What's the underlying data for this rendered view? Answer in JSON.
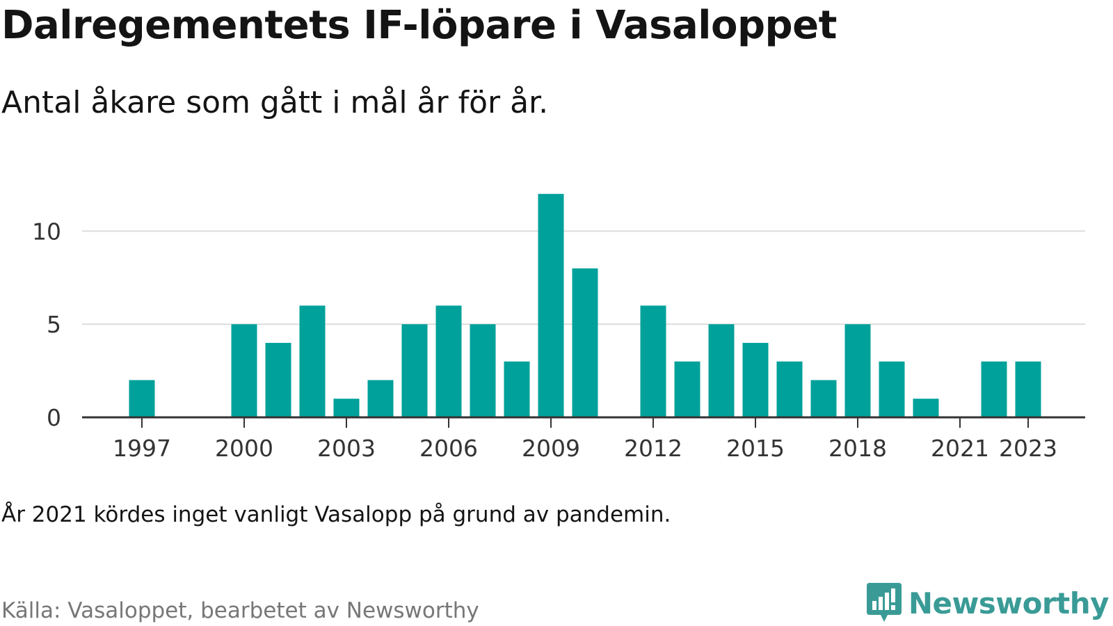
{
  "title": "Dalregementets IF-löpare i Vasaloppet",
  "subtitle": "Antal åkare som gått i mål år för år.",
  "note": "År 2021 kördes inget vanligt Vasalopp på grund av pandemin.",
  "source": "Källa: Vasaloppet, bearbetet av Newsworthy",
  "logo": {
    "text": "Newsworthy",
    "icon": "newsworthy-logo-icon",
    "color": "#3a9b96"
  },
  "chart_data": {
    "type": "bar",
    "x": [
      1997,
      1998,
      1999,
      2000,
      2001,
      2002,
      2003,
      2004,
      2005,
      2006,
      2007,
      2008,
      2009,
      2010,
      2011,
      2012,
      2013,
      2014,
      2015,
      2016,
      2017,
      2018,
      2019,
      2020,
      2021,
      2022,
      2023
    ],
    "values": [
      2,
      0,
      0,
      5,
      4,
      6,
      1,
      2,
      5,
      6,
      5,
      3,
      12,
      8,
      0,
      6,
      3,
      5,
      4,
      3,
      2,
      5,
      3,
      1,
      0,
      3,
      3
    ],
    "x_ticks": [
      "1997",
      "2000",
      "2003",
      "2006",
      "2009",
      "2012",
      "2015",
      "2018",
      "2021",
      "2023"
    ],
    "y_ticks": [
      "0",
      "5",
      "10"
    ],
    "ylim": [
      0,
      13
    ],
    "grid": true,
    "bar_color": "#00a19a",
    "xlabel": "",
    "ylabel": ""
  }
}
